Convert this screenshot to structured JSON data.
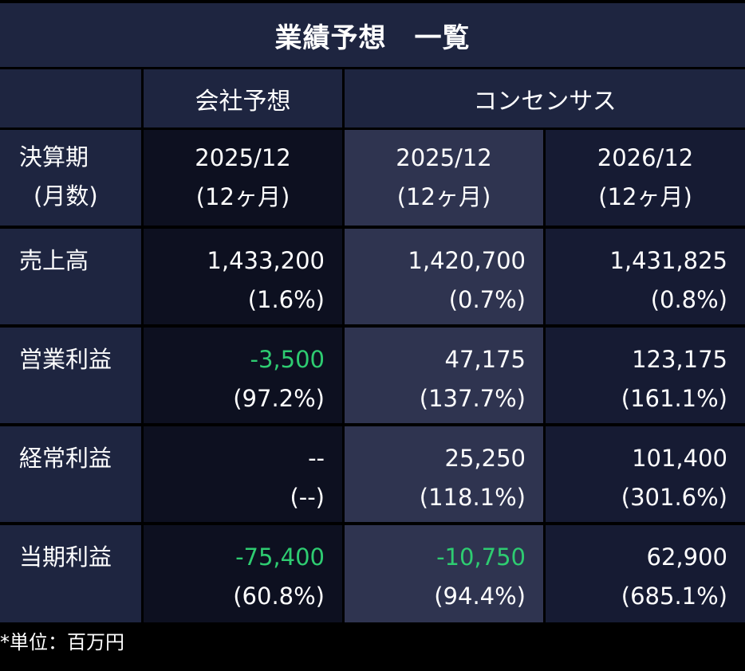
{
  "title": "業績予想　一覧",
  "headers": {
    "company": "会社予想",
    "consensus": "コンセンサス"
  },
  "period_label": {
    "line1": "決算期",
    "line2": "(月数)"
  },
  "periods": [
    {
      "date": "2025/12",
      "months": "(12ヶ月)"
    },
    {
      "date": "2025/12",
      "months": "(12ヶ月)"
    },
    {
      "date": "2026/12",
      "months": "(12ヶ月)"
    }
  ],
  "rows": [
    {
      "label": "売上高",
      "values": [
        {
          "value": "1,433,200",
          "change": "(1.6%)"
        },
        {
          "value": "1,420,700",
          "change": "(0.7%)"
        },
        {
          "value": "1,431,825",
          "change": "(0.8%)"
        }
      ]
    },
    {
      "label": "営業利益",
      "values": [
        {
          "value": "-3,500",
          "change": "(97.2%)"
        },
        {
          "value": "47,175",
          "change": "(137.7%)"
        },
        {
          "value": "123,175",
          "change": "(161.1%)"
        }
      ]
    },
    {
      "label": "経常利益",
      "values": [
        {
          "value": "--",
          "change": "(--)"
        },
        {
          "value": "25,250",
          "change": "(118.1%)"
        },
        {
          "value": "101,400",
          "change": "(301.6%)"
        }
      ]
    },
    {
      "label": "当期利益",
      "values": [
        {
          "value": "-75,400",
          "change": "(60.8%)"
        },
        {
          "value": "-10,750",
          "change": "(94.4%)"
        },
        {
          "value": "62,900",
          "change": "(685.1%)"
        }
      ]
    }
  ],
  "footnote": "*単位：百万円",
  "colors": {
    "negative": "#2ecc71",
    "header_bg": "#1e2540",
    "company_bg": "#0d1020",
    "consensus_current_bg": "#2f3450",
    "consensus_next_bg": "#161b33"
  }
}
